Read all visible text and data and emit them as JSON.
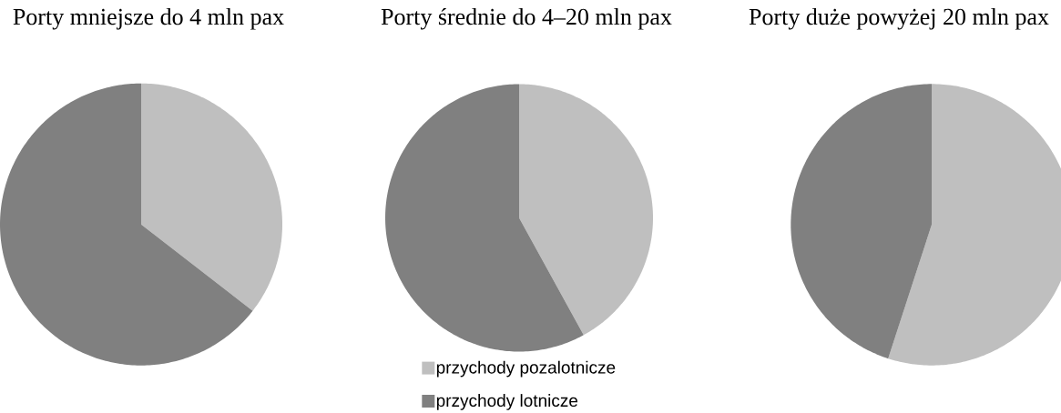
{
  "chart_data": [
    {
      "type": "pie",
      "title": "Porty mniejsze do 4 mln pax",
      "categories": [
        null,
        null
      ],
      "values": [
        35.5,
        64.5
      ],
      "colors": [
        "#bfbfbf",
        "#808080"
      ]
    },
    {
      "type": "pie",
      "title": "Porty średnie do 4–20 mln pax",
      "categories": [
        "przychody pozalotnicze",
        "przychody lotnicze"
      ],
      "values": [
        42,
        58
      ],
      "colors": [
        "#bfbfbf",
        "#808080"
      ],
      "legend": "bottom"
    },
    {
      "type": "pie",
      "title": "Porty duże powyżej 20 mln pax",
      "categories": [
        null,
        null
      ],
      "values": [
        55,
        45
      ],
      "colors": [
        "#bfbfbf",
        "#808080"
      ]
    }
  ]
}
